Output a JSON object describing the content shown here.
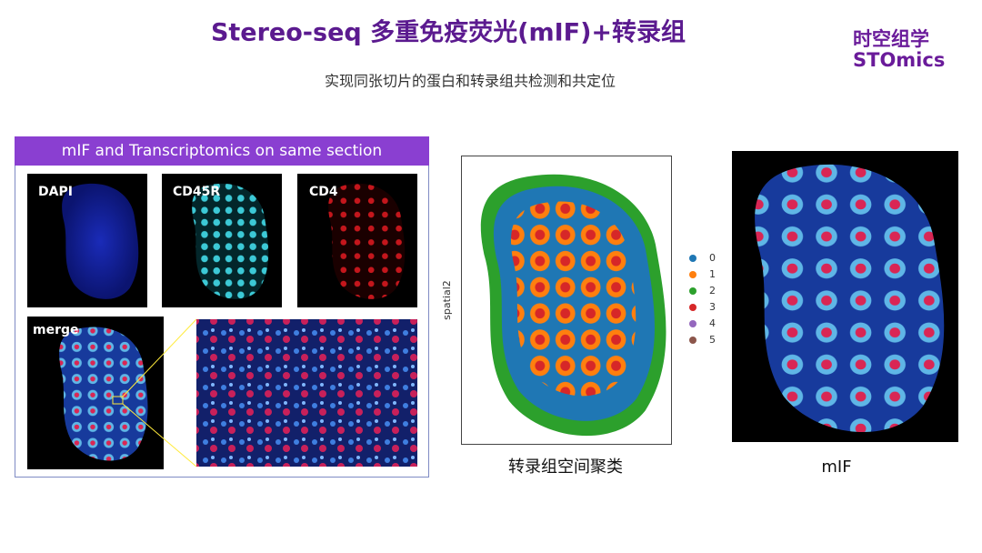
{
  "header": {
    "title": "Stereo-seq 多重免疫荧光(mIF)+转录组",
    "subtitle": "实现同张切片的蛋白和转录组共检测和共定位"
  },
  "logo": {
    "line1": "时空组学",
    "line2": "STOmics"
  },
  "panel": {
    "title": "mIF and Transcriptomics on same section",
    "images": [
      "DAPI",
      "CD45R",
      "CD4",
      "merge"
    ]
  },
  "cluster_plot": {
    "y_label": "spatial2",
    "caption": "转录组空间聚类",
    "legend": [
      {
        "label": "0",
        "color": "#1f77b4"
      },
      {
        "label": "1",
        "color": "#ff7f0e"
      },
      {
        "label": "2",
        "color": "#2ca02c"
      },
      {
        "label": "3",
        "color": "#d62728"
      },
      {
        "label": "4",
        "color": "#9467bd"
      },
      {
        "label": "5",
        "color": "#8c564b"
      }
    ]
  },
  "mif": {
    "caption": "mIF"
  }
}
